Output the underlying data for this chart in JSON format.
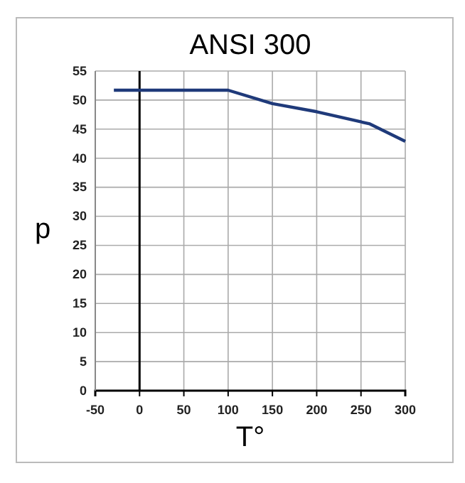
{
  "chart_data": {
    "type": "line",
    "title": "ANSI 300",
    "xlabel": "T°",
    "ylabel": "p",
    "x": [
      -29,
      100,
      150,
      200,
      260,
      300
    ],
    "series": [
      {
        "color": "#1f3a7a",
        "values": [
          51.7,
          51.7,
          49.4,
          48.0,
          45.9,
          42.9
        ]
      }
    ],
    "xlim": [
      -50,
      300
    ],
    "xticks": [
      -50,
      0,
      50,
      100,
      150,
      200,
      250,
      300
    ],
    "ylim": [
      0,
      55
    ],
    "yticks": [
      0,
      5,
      10,
      15,
      20,
      25,
      30,
      35,
      40,
      45,
      50,
      55
    ],
    "grid": true,
    "marker": "none",
    "line_style": "solid"
  }
}
